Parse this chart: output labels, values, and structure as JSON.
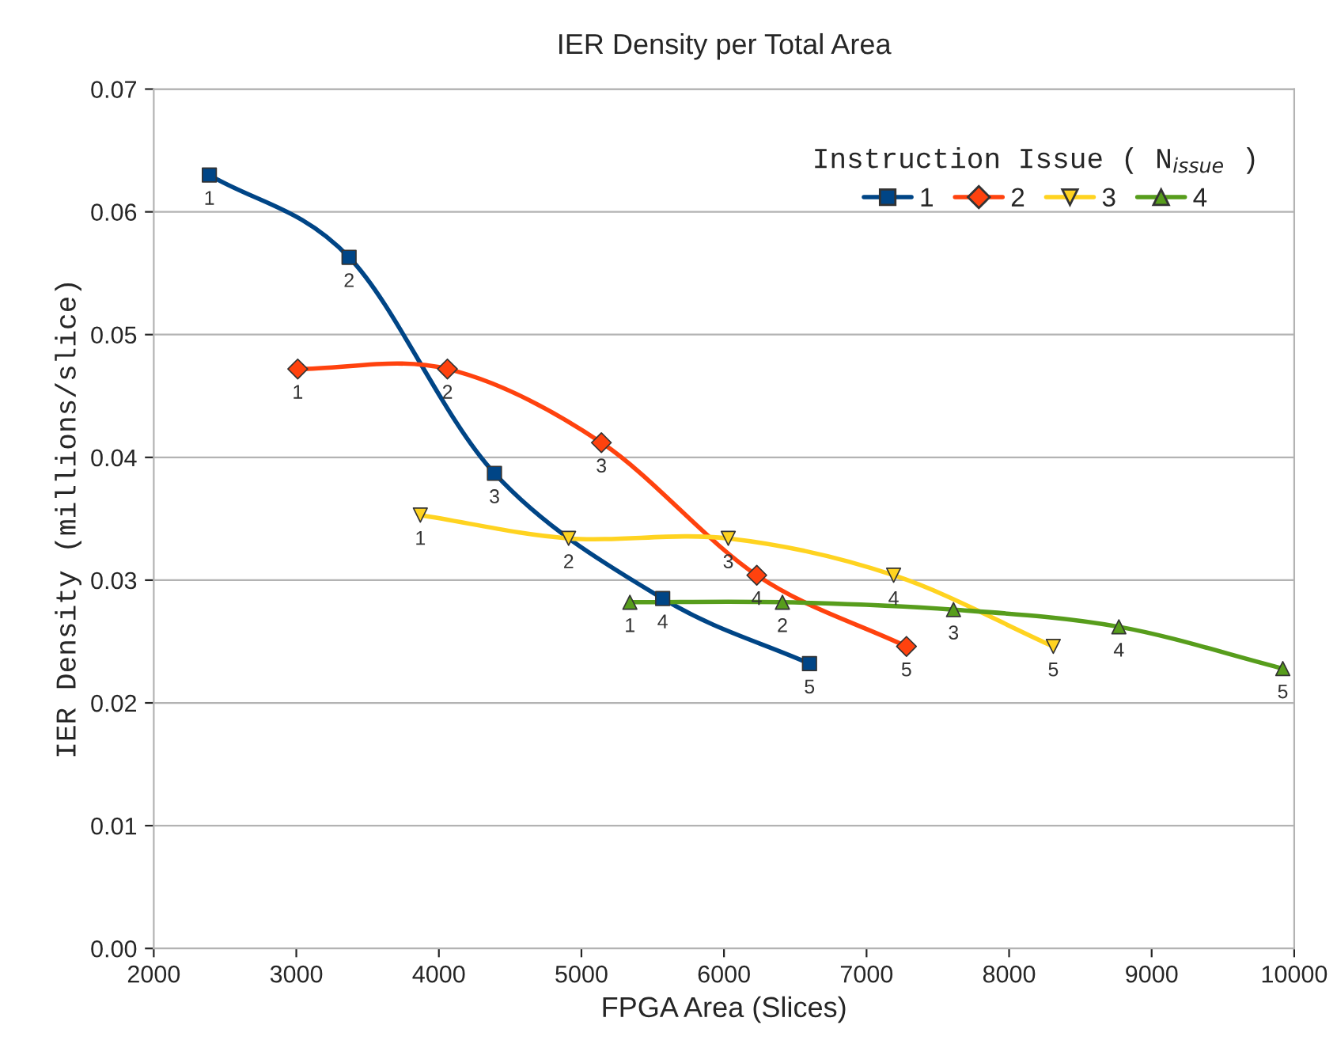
{
  "chart_data": {
    "type": "line",
    "title": "IER Density per Total Area",
    "xlabel": "FPGA Area (Slices)",
    "ylabel": "IER Density (millions/slice)",
    "legend_title": "Instruction Issue ( N$_{issue}$ )",
    "xlim": [
      2000,
      10000
    ],
    "xticks": [
      2000,
      3000,
      4000,
      5000,
      6000,
      7000,
      8000,
      9000,
      10000
    ],
    "ylim": [
      0,
      0.07
    ],
    "yticks": [
      {
        "value": 0,
        "label": "0.00"
      },
      {
        "value": 0.01,
        "label": "0.01"
      },
      {
        "value": 0.02,
        "label": "0.02"
      },
      {
        "value": 0.03,
        "label": "0.03"
      },
      {
        "value": 0.04,
        "label": "0.04"
      },
      {
        "value": 0.05,
        "label": "0.05"
      },
      {
        "value": 0.06,
        "label": "0.06"
      },
      {
        "value": 0.07,
        "label": "0.07"
      }
    ],
    "grid": "y",
    "legend": "top right",
    "line_style": "solid",
    "series": [
      {
        "name": "1",
        "color": "#004586",
        "marker": "square",
        "x": [
          2390,
          3370,
          4390,
          5570,
          6600
        ],
        "values": [
          0.063,
          0.0563,
          0.0387,
          0.0285,
          0.0232
        ]
      },
      {
        "name": "2",
        "color": "#ff420e",
        "marker": "diamond",
        "x": [
          3010,
          4060,
          5140,
          6230,
          7280
        ],
        "values": [
          0.0472,
          0.0472,
          0.0412,
          0.0304,
          0.0246
        ]
      },
      {
        "name": "3",
        "color": "#ffd320",
        "marker": "triangle_down",
        "x": [
          3870,
          4910,
          6030,
          7190,
          8310
        ],
        "values": [
          0.0353,
          0.0334,
          0.0334,
          0.0304,
          0.0246
        ]
      },
      {
        "name": "4",
        "color": "#579d1c",
        "marker": "triangle",
        "x": [
          5340,
          6410,
          7610,
          8770,
          9920
        ],
        "values": [
          0.0282,
          0.0282,
          0.0276,
          0.0262,
          0.0228
        ]
      }
    ],
    "annotations": [
      {
        "text": "1",
        "x": 2390,
        "y": 0.063
      },
      {
        "text": "2",
        "x": 3370,
        "y": 0.0563
      },
      {
        "text": "3",
        "x": 4390,
        "y": 0.0387
      },
      {
        "text": "4",
        "x": 5570,
        "y": 0.0285
      },
      {
        "text": "5",
        "x": 6600,
        "y": 0.0232
      },
      {
        "text": "1",
        "x": 3010,
        "y": 0.0472
      },
      {
        "text": "2",
        "x": 4060,
        "y": 0.0472
      },
      {
        "text": "3",
        "x": 5140,
        "y": 0.0412
      },
      {
        "text": "4",
        "x": 6230,
        "y": 0.0304
      },
      {
        "text": "5",
        "x": 7280,
        "y": 0.0246
      },
      {
        "text": "1",
        "x": 3870,
        "y": 0.0353
      },
      {
        "text": "2",
        "x": 4910,
        "y": 0.0334
      },
      {
        "text": "3",
        "x": 6030,
        "y": 0.0334
      },
      {
        "text": "4",
        "x": 7190,
        "y": 0.0304
      },
      {
        "text": "5",
        "x": 8310,
        "y": 0.0246
      },
      {
        "text": "1",
        "x": 5340,
        "y": 0.0282
      },
      {
        "text": "2",
        "x": 6410,
        "y": 0.0282
      },
      {
        "text": "3",
        "x": 7610,
        "y": 0.0276
      },
      {
        "text": "4",
        "x": 8770,
        "y": 0.0262
      },
      {
        "text": "5",
        "x": 9920,
        "y": 0.0228
      }
    ]
  }
}
